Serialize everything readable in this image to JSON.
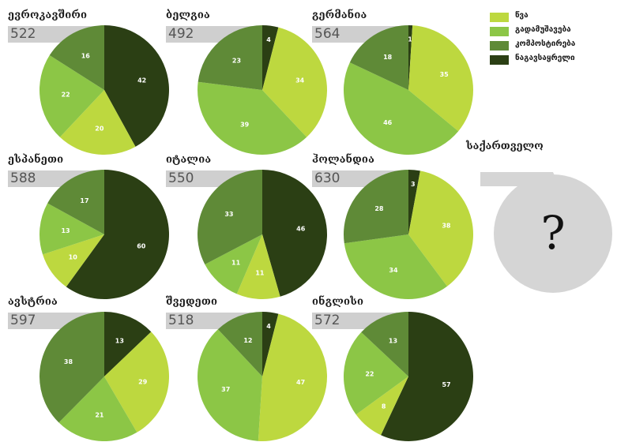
{
  "colors": {
    "light_yellow_green": "#bdd83f",
    "light_green": "#8cc646",
    "medium_green": "#5f8a37",
    "dark_green": "#2b3f14",
    "tab_gray": "#cfcfcf",
    "unknown_gray": "#d5d5d5"
  },
  "legend": [
    {
      "label": "წვა",
      "color": "#bdd83f"
    },
    {
      "label": "გადამუშავება",
      "color": "#8cc646"
    },
    {
      "label": "კომპოსტირება",
      "color": "#5f8a37"
    },
    {
      "label": "ნაგავსაყრელი",
      "color": "#2b3f14"
    }
  ],
  "unknown_country": {
    "title": "საქართველო",
    "mark": "?"
  },
  "chart_data": [
    {
      "type": "pie",
      "title": "ევროკავშირი",
      "total": "522",
      "values": [
        20,
        22,
        16,
        42
      ],
      "labels": [
        "20",
        "22",
        "16",
        "42"
      ]
    },
    {
      "type": "pie",
      "title": "ბელგია",
      "total": "492",
      "values": [
        34,
        39,
        23,
        4
      ],
      "labels": [
        "34",
        "39",
        "23",
        "4"
      ]
    },
    {
      "type": "pie",
      "title": "გერმანია",
      "total": "564",
      "values": [
        35,
        46,
        18,
        1
      ],
      "labels": [
        "35",
        "46",
        "18",
        "1"
      ]
    },
    {
      "type": "pie",
      "title": "ესპანეთი",
      "total": "588",
      "values": [
        10,
        13,
        17,
        60
      ],
      "labels": [
        "10",
        "13",
        "17",
        "60"
      ]
    },
    {
      "type": "pie",
      "title": "იტალია",
      "total": "550",
      "values": [
        11,
        11,
        33,
        46
      ],
      "labels": [
        "11",
        "11",
        "33",
        "46"
      ]
    },
    {
      "type": "pie",
      "title": "ჰოლანდია",
      "total": "630",
      "values": [
        38,
        34,
        28,
        3
      ],
      "labels": [
        "38",
        "34",
        "28",
        "3"
      ]
    },
    {
      "type": "pie",
      "title": "ავსტრია",
      "total": "597",
      "values": [
        29,
        21,
        38,
        13
      ],
      "labels": [
        "29",
        "21",
        "38",
        "13"
      ]
    },
    {
      "type": "pie",
      "title": "შვედეთი",
      "total": "518",
      "values": [
        47,
        37,
        12,
        4
      ],
      "labels": [
        "47",
        "37",
        "12",
        "4"
      ]
    },
    {
      "type": "pie",
      "title": "ინგლისი",
      "total": "572",
      "values": [
        8,
        22,
        13,
        57
      ],
      "labels": [
        "8",
        "22",
        "13",
        "57"
      ]
    }
  ]
}
